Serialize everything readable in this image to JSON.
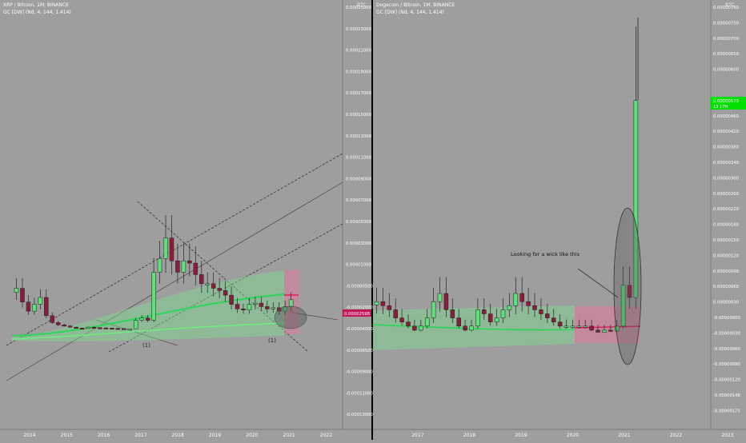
{
  "panels": [
    {
      "title": "XRP / Bitcoin, 1M, BINANCE",
      "indicator": "GC [DW] (Nd, 4, 144, 1.414)",
      "currency": "BTC",
      "price_badge": "0.00002598",
      "annotations": [
        {
          "text": "(1)"
        },
        {
          "text": "(1)"
        }
      ]
    },
    {
      "title": "Dogecoin / Bitcoin, 1M, BINANCE",
      "indicator": "GC [DW] (Nd, 4, 144, 1.414)",
      "currency": "BTC",
      "price_badge": "0.00000573",
      "price_badge_sub": "13 17H",
      "annotations": [
        {
          "text": "Looking for a wick like this"
        }
      ]
    }
  ],
  "chart_data": [
    {
      "type": "candlestick",
      "title": "XRP / Bitcoin, 1M, BINANCE",
      "x_ticks": [
        "2014",
        "2015",
        "2016",
        "2017",
        "2018",
        "2019",
        "2020",
        "2021",
        "2022"
      ],
      "y_ticks": [
        "0.00025000",
        "0.00023000",
        "0.00021000",
        "0.00019000",
        "0.00017000",
        "0.00015000",
        "0.00013000",
        "0.00011000",
        "0.00009000",
        "0.00007000",
        "0.00005000",
        "0.00003000",
        "0.00001000",
        "-0.00000500",
        "-0.00002000",
        "-0.00004000",
        "-0.00006500",
        "-0.00009000",
        "-0.00011000",
        "-0.00013000"
      ],
      "last_price": 2.598e-05,
      "series": [
        {
          "name": "XRP/BTC monthly (approx.)",
          "close": [
            3.6e-05,
            2.4e-05,
            1.6e-05,
            2.2e-05,
            2.8e-05,
            1.2e-05,
            6e-06,
            4e-06,
            3e-06,
            2e-06,
            1.2e-06,
            8e-07,
            2e-06,
            1.6e-06,
            1.4e-06,
            1.2e-06,
            1e-06,
            8e-07,
            6e-07,
            6e-07,
            8e-06,
            1e-05,
            8e-06,
            5e-05,
            6.2e-05,
            8e-05,
            6e-05,
            5e-05,
            6e-05,
            5.8e-05,
            4.8e-05,
            4e-05,
            4e-05,
            3.6e-05,
            3.4e-05,
            3e-05,
            2.2e-05,
            1.8e-05,
            1.7e-05,
            2.2e-05,
            2.3e-05,
            2e-05,
            1.8e-05,
            1.9e-05,
            1.6e-05,
            2e-05,
            2.6e-05
          ]
        }
      ]
    },
    {
      "type": "candlestick",
      "title": "Dogecoin / Bitcoin, 1M, BINANCE",
      "x_ticks": [
        "2017",
        "2018",
        "2019",
        "2020",
        "2021",
        "2022",
        "2023"
      ],
      "y_ticks": [
        "0.00000780",
        "0.00000750",
        "0.00000700",
        "0.00000650",
        "0.00000600",
        "0.00000573",
        "0.00000500",
        "0.00000460",
        "0.00000420",
        "0.00000380",
        "0.00000340",
        "0.00000300",
        "0.00000260",
        "0.00000220",
        "0.00000180",
        "0.00000150",
        "0.00000120",
        "0.00000090",
        "0.00000060",
        "0.00000030",
        "-0.00000000",
        "-0.00000030",
        "-0.00000060",
        "-0.00000090",
        "-0.00000120",
        "-0.00000148",
        "-0.00000175"
      ],
      "last_price": 5.73e-06,
      "series": [
        {
          "name": "DOGE/BTC monthly (approx.)",
          "close": [
            8e-07,
            7e-07,
            6e-07,
            4e-07,
            3e-07,
            2e-07,
            1e-07,
            2e-07,
            4e-07,
            8e-07,
            1e-06,
            6e-07,
            4e-07,
            2e-07,
            1e-07,
            2e-07,
            6e-07,
            5e-07,
            3e-07,
            4e-07,
            6e-07,
            7e-07,
            1e-06,
            8e-07,
            7e-07,
            6e-07,
            5e-07,
            4e-07,
            3e-07,
            2e-07,
            2e-07,
            2e-07,
            2e-07,
            2e-07,
            1e-07,
            5e-08,
            1e-07,
            8e-08,
            2e-07,
            1.2e-06,
            9e-07,
            5.73e-06
          ]
        }
      ]
    }
  ]
}
